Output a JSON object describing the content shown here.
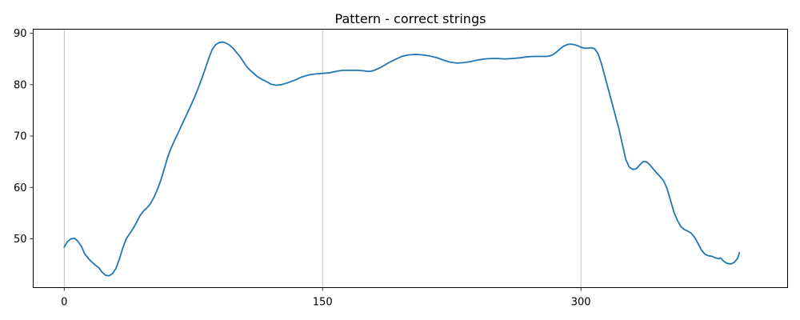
{
  "chart_data": {
    "type": "line",
    "title": "Pattern - correct strings",
    "xlabel": "",
    "ylabel": "",
    "xlim": [
      -18,
      420
    ],
    "ylim": [
      40.5,
      90.8
    ],
    "xticks": [
      0,
      150,
      300
    ],
    "yticks": [
      50,
      60,
      70,
      80,
      90
    ],
    "grid": "x-only",
    "line_color": "#1f77b4",
    "series": [
      {
        "points": [
          [
            0,
            48.4
          ],
          [
            2,
            49.5
          ],
          [
            4,
            50.0
          ],
          [
            6,
            50.1
          ],
          [
            8,
            49.5
          ],
          [
            10,
            48.5
          ],
          [
            12,
            47.0
          ],
          [
            15,
            45.8
          ],
          [
            18,
            44.9
          ],
          [
            20,
            44.4
          ],
          [
            22,
            43.5
          ],
          [
            24,
            42.9
          ],
          [
            26,
            42.8
          ],
          [
            28,
            43.2
          ],
          [
            30,
            44.2
          ],
          [
            32,
            46.0
          ],
          [
            34,
            48.2
          ],
          [
            36,
            50.0
          ],
          [
            38,
            51.0
          ],
          [
            40,
            52.0
          ],
          [
            42,
            53.2
          ],
          [
            44,
            54.5
          ],
          [
            46,
            55.4
          ],
          [
            48,
            56.0
          ],
          [
            50,
            56.8
          ],
          [
            52,
            58.0
          ],
          [
            54,
            59.5
          ],
          [
            56,
            61.3
          ],
          [
            58,
            63.5
          ],
          [
            60,
            65.8
          ],
          [
            62,
            67.6
          ],
          [
            64,
            69.1
          ],
          [
            66,
            70.5
          ],
          [
            68,
            72.0
          ],
          [
            70,
            73.4
          ],
          [
            72,
            74.8
          ],
          [
            74,
            76.3
          ],
          [
            76,
            77.8
          ],
          [
            78,
            79.5
          ],
          [
            80,
            81.3
          ],
          [
            82,
            83.2
          ],
          [
            84,
            85.2
          ],
          [
            86,
            86.9
          ],
          [
            88,
            87.8
          ],
          [
            90,
            88.2
          ],
          [
            92,
            88.3
          ],
          [
            94,
            88.1
          ],
          [
            96,
            87.7
          ],
          [
            98,
            87.1
          ],
          [
            100,
            86.3
          ],
          [
            102,
            85.5
          ],
          [
            104,
            84.5
          ],
          [
            106,
            83.5
          ],
          [
            108,
            82.8
          ],
          [
            110,
            82.2
          ],
          [
            112,
            81.6
          ],
          [
            115,
            81.0
          ],
          [
            118,
            80.5
          ],
          [
            120,
            80.1
          ],
          [
            123,
            79.9
          ],
          [
            126,
            80.0
          ],
          [
            130,
            80.4
          ],
          [
            134,
            80.9
          ],
          [
            138,
            81.5
          ],
          [
            142,
            81.9
          ],
          [
            146,
            82.1
          ],
          [
            150,
            82.2
          ],
          [
            154,
            82.3
          ],
          [
            158,
            82.6
          ],
          [
            162,
            82.8
          ],
          [
            166,
            82.8
          ],
          [
            170,
            82.8
          ],
          [
            174,
            82.7
          ],
          [
            176,
            82.6
          ],
          [
            178,
            82.6
          ],
          [
            180,
            82.8
          ],
          [
            184,
            83.4
          ],
          [
            188,
            84.2
          ],
          [
            192,
            84.9
          ],
          [
            196,
            85.5
          ],
          [
            200,
            85.8
          ],
          [
            204,
            85.9
          ],
          [
            208,
            85.8
          ],
          [
            212,
            85.6
          ],
          [
            216,
            85.3
          ],
          [
            220,
            84.8
          ],
          [
            224,
            84.4
          ],
          [
            228,
            84.2
          ],
          [
            232,
            84.3
          ],
          [
            236,
            84.5
          ],
          [
            240,
            84.8
          ],
          [
            244,
            85.0
          ],
          [
            248,
            85.1
          ],
          [
            252,
            85.1
          ],
          [
            256,
            85.0
          ],
          [
            260,
            85.1
          ],
          [
            264,
            85.2
          ],
          [
            268,
            85.4
          ],
          [
            272,
            85.5
          ],
          [
            276,
            85.5
          ],
          [
            280,
            85.5
          ],
          [
            282,
            85.6
          ],
          [
            284,
            85.9
          ],
          [
            286,
            86.4
          ],
          [
            288,
            87.0
          ],
          [
            290,
            87.5
          ],
          [
            292,
            87.8
          ],
          [
            294,
            87.9
          ],
          [
            296,
            87.8
          ],
          [
            298,
            87.6
          ],
          [
            300,
            87.3
          ],
          [
            302,
            87.1
          ],
          [
            304,
            87.1
          ],
          [
            306,
            87.2
          ],
          [
            308,
            87.0
          ],
          [
            310,
            86.0
          ],
          [
            312,
            84.0
          ],
          [
            314,
            81.5
          ],
          [
            316,
            79.0
          ],
          [
            318,
            76.5
          ],
          [
            320,
            74.0
          ],
          [
            322,
            71.5
          ],
          [
            324,
            68.5
          ],
          [
            326,
            65.5
          ],
          [
            328,
            64.0
          ],
          [
            330,
            63.5
          ],
          [
            332,
            63.6
          ],
          [
            334,
            64.3
          ],
          [
            336,
            65.0
          ],
          [
            338,
            65.0
          ],
          [
            340,
            64.4
          ],
          [
            342,
            63.6
          ],
          [
            344,
            62.8
          ],
          [
            346,
            62.1
          ],
          [
            348,
            61.3
          ],
          [
            350,
            59.8
          ],
          [
            352,
            57.5
          ],
          [
            354,
            55.2
          ],
          [
            356,
            53.6
          ],
          [
            358,
            52.4
          ],
          [
            360,
            51.8
          ],
          [
            362,
            51.5
          ],
          [
            364,
            51.1
          ],
          [
            366,
            50.3
          ],
          [
            368,
            49.1
          ],
          [
            370,
            47.8
          ],
          [
            372,
            47.0
          ],
          [
            374,
            46.7
          ],
          [
            376,
            46.6
          ],
          [
            378,
            46.3
          ],
          [
            380,
            46.1
          ],
          [
            381,
            46.3
          ],
          [
            383,
            45.6
          ],
          [
            385,
            45.2
          ],
          [
            387,
            45.1
          ],
          [
            389,
            45.4
          ],
          [
            391,
            46.2
          ],
          [
            392,
            47.3
          ]
        ]
      }
    ]
  }
}
